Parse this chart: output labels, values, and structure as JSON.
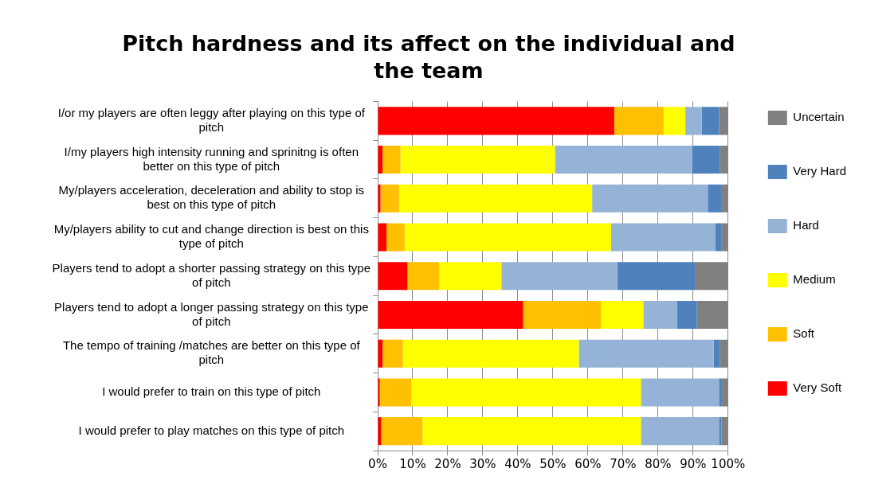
{
  "chart_data": {
    "type": "bar",
    "orientation": "horizontal",
    "stacked": true,
    "title": "Pitch hardness and its affect on the individual and the team",
    "categories": [
      "I/or my players are often leggy after playing on this type of pitch",
      "I/my players high intensity running and sprinitng is often better on this type of pitch",
      "My/players acceleration, deceleration and ability to stop is best on this type of pitch",
      "My/players ability to cut and change direction is best on this type of pitch",
      "Players tend to adopt a shorter passing strategy on this type of pitch",
      "Players tend to adopt a longer passing strategy on this type of pitch",
      "The tempo of training /matches are better on this type of pitch",
      "I would prefer to train on this type of pitch",
      "I would prefer to play matches on this type of pitch"
    ],
    "series": [
      {
        "name": "Very Soft",
        "color": "#ff0000",
        "values": [
          67.5,
          1.4,
          0.8,
          2.5,
          8.5,
          41.5,
          1.4,
          0.6,
          1.0
        ]
      },
      {
        "name": "Soft",
        "color": "#ffc000",
        "values": [
          14.1,
          5.1,
          5.3,
          5.2,
          9.1,
          22.2,
          5.8,
          9.0,
          11.8
        ]
      },
      {
        "name": "Medium",
        "color": "#ffff00",
        "values": [
          6.2,
          44.1,
          55.1,
          58.9,
          17.7,
          12.1,
          50.2,
          65.5,
          62.3
        ]
      },
      {
        "name": "Hard",
        "color": "#95b3d7",
        "values": [
          4.7,
          39.1,
          33.0,
          29.7,
          33.1,
          9.7,
          38.5,
          22.3,
          22.3
        ]
      },
      {
        "name": "Very Hard",
        "color": "#4f81bd",
        "values": [
          4.9,
          8.0,
          3.8,
          1.9,
          22.3,
          5.6,
          1.8,
          0.6,
          0.7
        ]
      },
      {
        "name": "Uncertain",
        "color": "#808080",
        "values": [
          2.6,
          2.3,
          2.0,
          1.8,
          9.3,
          8.9,
          2.3,
          2.0,
          1.9
        ]
      }
    ],
    "xlim": [
      0,
      100
    ],
    "xticks": [
      {
        "value": 0,
        "label": "0%"
      },
      {
        "value": 10,
        "label": "10%"
      },
      {
        "value": 20,
        "label": "20%"
      },
      {
        "value": 30,
        "label": "30%"
      },
      {
        "value": 40,
        "label": "40%"
      },
      {
        "value": 50,
        "label": "50%"
      },
      {
        "value": 60,
        "label": "60%"
      },
      {
        "value": 70,
        "label": "70%"
      },
      {
        "value": 80,
        "label": "80%"
      },
      {
        "value": 90,
        "label": "90%"
      },
      {
        "value": 100,
        "label": "100%"
      }
    ],
    "grid": "x",
    "legend": "right"
  }
}
